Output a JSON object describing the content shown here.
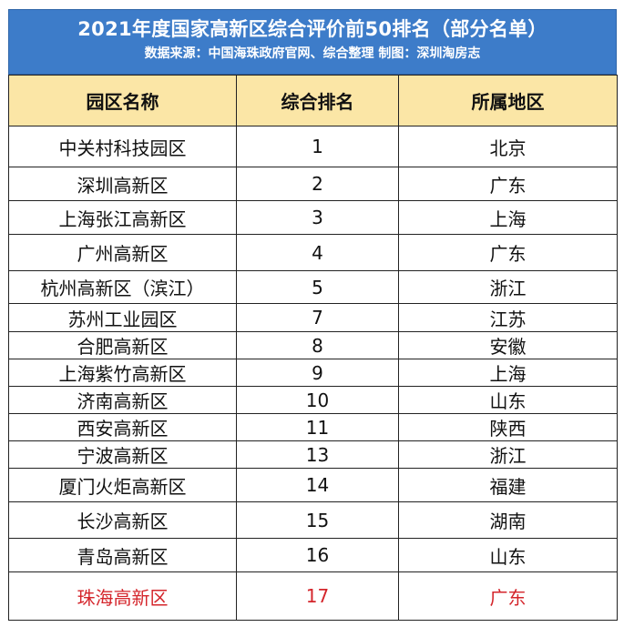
{
  "header": {
    "title": "2021年度国家高新区综合评价前50排名（部分名单）",
    "subtitle": "数据来源：中国海珠政府官网、综合整理  制图：深圳淘房志"
  },
  "columns": [
    "园区名称",
    "综合排名",
    "所属地区"
  ],
  "rows": [
    {
      "name": "中关村科技园区",
      "rank": "1",
      "region": "北京"
    },
    {
      "name": "深圳高新区",
      "rank": "2",
      "region": "广东"
    },
    {
      "name": "上海张江高新区",
      "rank": "3",
      "region": "上海"
    },
    {
      "name": "广州高新区",
      "rank": "4",
      "region": "广东"
    },
    {
      "name": "杭州高新区（滨江）",
      "rank": "5",
      "region": "浙江"
    },
    {
      "name": "苏州工业园区",
      "rank": "7",
      "region": "江苏"
    },
    {
      "name": "合肥高新区",
      "rank": "8",
      "region": "安徽"
    },
    {
      "name": "上海紫竹高新区",
      "rank": "9",
      "region": "上海"
    },
    {
      "name": "济南高新区",
      "rank": "10",
      "region": "山东"
    },
    {
      "name": "西安高新区",
      "rank": "11",
      "region": "陕西"
    },
    {
      "name": "宁波高新区",
      "rank": "13",
      "region": "浙江"
    },
    {
      "name": "厦门火炬高新区",
      "rank": "14",
      "region": "福建"
    },
    {
      "name": "长沙高新区",
      "rank": "15",
      "region": "湖南"
    },
    {
      "name": "青岛高新区",
      "rank": "16",
      "region": "山东"
    },
    {
      "name": "珠海高新区",
      "rank": "17",
      "region": "广东"
    }
  ],
  "colors": {
    "title_background": "#3d7cc9",
    "header_background": "#fbe6a6",
    "highlight_text": "#d4252b"
  }
}
